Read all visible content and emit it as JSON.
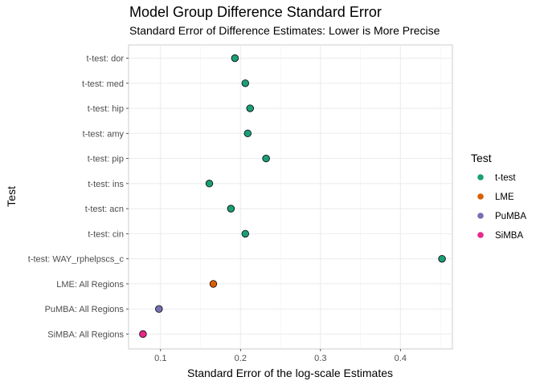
{
  "chart_data": {
    "type": "scatter",
    "title": "Model Group Difference Standard Error",
    "subtitle": "Standard Error of Difference Estimates: Lower is More Precise",
    "xlabel": "Standard Error of the log-scale Estimates",
    "ylabel": "Test",
    "xlim": [
      0.06,
      0.465
    ],
    "x_ticks": [
      0.1,
      0.2,
      0.3,
      0.4
    ],
    "x_tick_labels": [
      "0.1",
      "0.2",
      "0.3",
      "0.4"
    ],
    "grid": true,
    "legend": {
      "title": "Test",
      "position": "right",
      "entries": [
        {
          "label": "t-test",
          "color": "#1b9e77"
        },
        {
          "label": "LME",
          "color": "#d95f02"
        },
        {
          "label": "PuMBA",
          "color": "#7570b3"
        },
        {
          "label": "SiMBA",
          "color": "#e7298a"
        }
      ]
    },
    "categories": [
      "t-test: dor",
      "t-test: med",
      "t-test: hip",
      "t-test: amy",
      "t-test: pip",
      "t-test: ins",
      "t-test: acn",
      "t-test: cin",
      "t-test: WAY_rphelpscs_c",
      "LME: All Regions",
      "PuMBA: All Regions",
      "SiMBA: All Regions"
    ],
    "points": [
      {
        "category": "t-test: dor",
        "x": 0.193,
        "group": "t-test"
      },
      {
        "category": "t-test: med",
        "x": 0.206,
        "group": "t-test"
      },
      {
        "category": "t-test: hip",
        "x": 0.212,
        "group": "t-test"
      },
      {
        "category": "t-test: amy",
        "x": 0.209,
        "group": "t-test"
      },
      {
        "category": "t-test: pip",
        "x": 0.232,
        "group": "t-test"
      },
      {
        "category": "t-test: ins",
        "x": 0.161,
        "group": "t-test"
      },
      {
        "category": "t-test: acn",
        "x": 0.188,
        "group": "t-test"
      },
      {
        "category": "t-test: cin",
        "x": 0.206,
        "group": "t-test"
      },
      {
        "category": "t-test: WAY_rphelpscs_c",
        "x": 0.452,
        "group": "t-test"
      },
      {
        "category": "LME: All Regions",
        "x": 0.166,
        "group": "LME"
      },
      {
        "category": "PuMBA: All Regions",
        "x": 0.098,
        "group": "PuMBA"
      },
      {
        "category": "SiMBA: All Regions",
        "x": 0.078,
        "group": "SiMBA"
      }
    ]
  }
}
